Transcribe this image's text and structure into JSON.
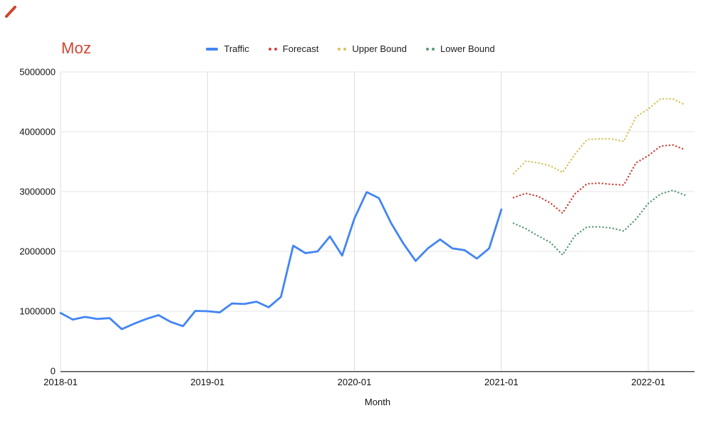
{
  "chart_data": {
    "type": "line",
    "title": "Moz",
    "title_color": "#cf4633",
    "xlabel": "Month",
    "ylabel": "",
    "ylim": [
      0,
      5000000
    ],
    "y_ticks": [
      0,
      1000000,
      2000000,
      3000000,
      4000000,
      5000000
    ],
    "x_ticks": [
      "2018-01",
      "2019-01",
      "2020-01",
      "2021-01",
      "2022-01"
    ],
    "grid": true,
    "legend_position": "top-center",
    "categories": [
      "2018-01",
      "2018-02",
      "2018-03",
      "2018-04",
      "2018-05",
      "2018-06",
      "2018-07",
      "2018-08",
      "2018-09",
      "2018-10",
      "2018-11",
      "2018-12",
      "2019-01",
      "2019-02",
      "2019-03",
      "2019-04",
      "2019-05",
      "2019-06",
      "2019-07",
      "2019-08",
      "2019-09",
      "2019-10",
      "2019-11",
      "2019-12",
      "2020-01",
      "2020-02",
      "2020-03",
      "2020-04",
      "2020-05",
      "2020-06",
      "2020-07",
      "2020-08",
      "2020-09",
      "2020-10",
      "2020-11",
      "2020-12",
      "2021-01",
      "2021-02",
      "2021-03",
      "2021-04",
      "2021-05",
      "2021-06",
      "2021-07",
      "2021-08",
      "2021-09",
      "2021-10",
      "2021-11",
      "2021-12",
      "2022-01",
      "2022-02",
      "2022-03",
      "2022-04"
    ],
    "series": [
      {
        "name": "Traffic",
        "color": "#4285f4",
        "style": "solid",
        "values": [
          970000,
          860000,
          905000,
          870000,
          885000,
          700000,
          790000,
          870000,
          935000,
          820000,
          750000,
          1005000,
          1000000,
          980000,
          1130000,
          1120000,
          1160000,
          1065000,
          1240000,
          2095000,
          1970000,
          2000000,
          2250000,
          1930000,
          2550000,
          2990000,
          2890000,
          2470000,
          2130000,
          1840000,
          2050000,
          2200000,
          2050000,
          2020000,
          1880000,
          2050000,
          2700000,
          null,
          null,
          null,
          null,
          null,
          null,
          null,
          null,
          null,
          null,
          null,
          null,
          null,
          null,
          null
        ]
      },
      {
        "name": "Forecast",
        "color": "#cf4437",
        "style": "dotted",
        "values": [
          null,
          null,
          null,
          null,
          null,
          null,
          null,
          null,
          null,
          null,
          null,
          null,
          null,
          null,
          null,
          null,
          null,
          null,
          null,
          null,
          null,
          null,
          null,
          null,
          null,
          null,
          null,
          null,
          null,
          null,
          null,
          null,
          null,
          null,
          null,
          null,
          null,
          2900000,
          2970000,
          2920000,
          2810000,
          2640000,
          2960000,
          3130000,
          3140000,
          3120000,
          3110000,
          3480000,
          3600000,
          3760000,
          3780000,
          3700000
        ]
      },
      {
        "name": "Upper Bound",
        "color": "#d6c25a",
        "style": "dotted",
        "values": [
          null,
          null,
          null,
          null,
          null,
          null,
          null,
          null,
          null,
          null,
          null,
          null,
          null,
          null,
          null,
          null,
          null,
          null,
          null,
          null,
          null,
          null,
          null,
          null,
          null,
          null,
          null,
          null,
          null,
          null,
          null,
          null,
          null,
          null,
          null,
          null,
          null,
          3300000,
          3510000,
          3480000,
          3430000,
          3320000,
          3620000,
          3870000,
          3880000,
          3880000,
          3840000,
          4250000,
          4380000,
          4550000,
          4550000,
          4450000
        ]
      },
      {
        "name": "Lower Bound",
        "color": "#5a9a72",
        "style": "dotted",
        "values": [
          null,
          null,
          null,
          null,
          null,
          null,
          null,
          null,
          null,
          null,
          null,
          null,
          null,
          null,
          null,
          null,
          null,
          null,
          null,
          null,
          null,
          null,
          null,
          null,
          null,
          null,
          null,
          null,
          null,
          null,
          null,
          null,
          null,
          null,
          null,
          null,
          null,
          2470000,
          2380000,
          2260000,
          2150000,
          1940000,
          2260000,
          2410000,
          2410000,
          2390000,
          2340000,
          2540000,
          2800000,
          2960000,
          3020000,
          2940000
        ]
      }
    ],
    "colors": {
      "grid_h": "#e4e4e4",
      "grid_v": "#dcdcdc",
      "axis": "#4a4a4a",
      "tick_text": "#111111"
    }
  }
}
